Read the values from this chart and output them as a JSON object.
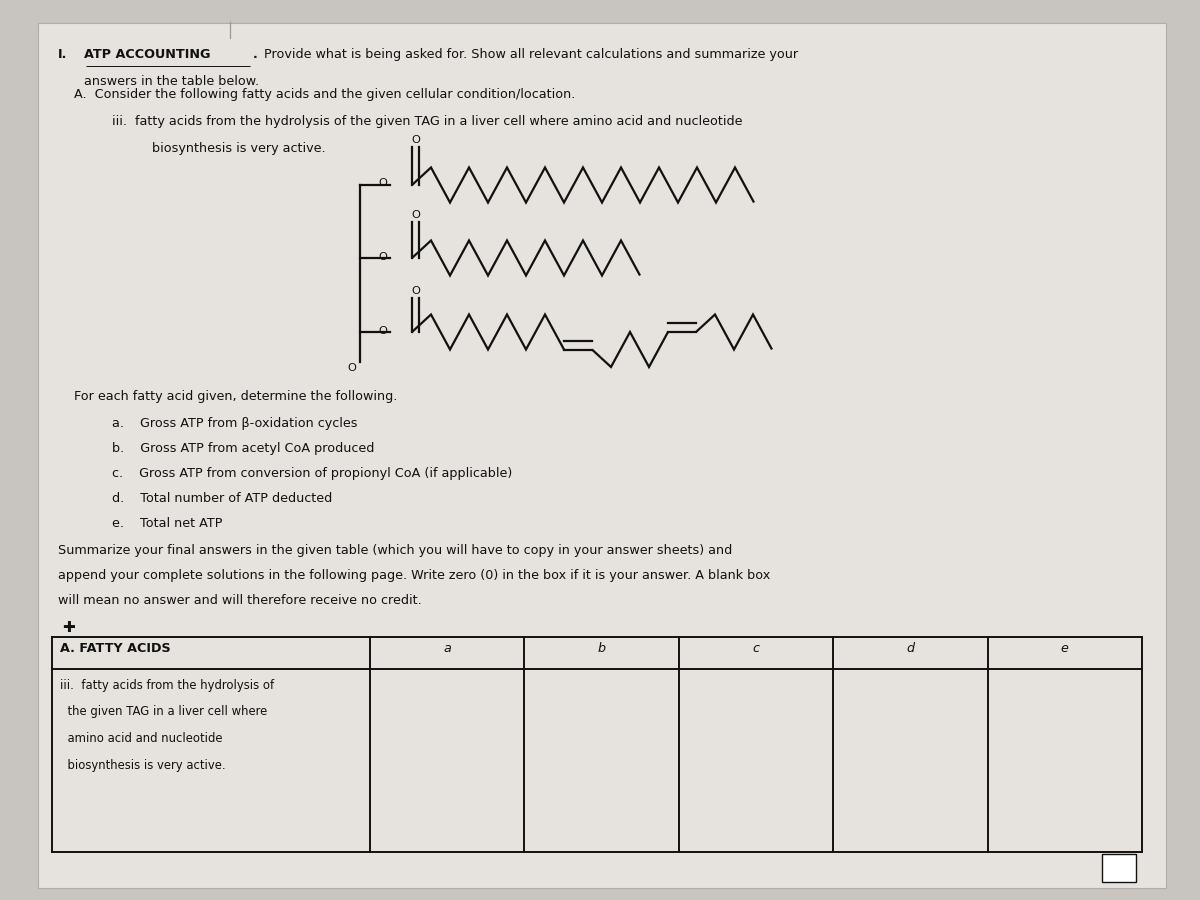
{
  "bg_color": "#c8c4c0",
  "page_bg": "#e6e2de",
  "title_num": "I.",
  "title_bold": "ATP ACCOUNTING",
  "title_dot": ".",
  "title_rest": " Provide what is being asked for. Show all relevant calculations and summarize your",
  "title_rest2": "answers in the table below.",
  "section_a": "A.  Consider the following fatty acids and the given cellular condition/location.",
  "section_iii": "iii.  fatty acids from the hydrolysis of the given TAG in a liver cell where amino acid and nucleotide",
  "section_iii2": "biosynthesis is very active.",
  "for_each": "For each fatty acid given, determine the following.",
  "item_a": "a.    Gross ATP from β-oxidation cycles",
  "item_b": "b.    Gross ATP from acetyl CoA produced",
  "item_c": "c.    Gross ATP from conversion of propionyl CoA (if applicable)",
  "item_d": "d.    Total number of ATP deducted",
  "item_e": "e.    Total net ATP",
  "summary1": "Summarize your final answers in the given table (which you will have to copy in your answer sheets) and",
  "summary2": "append your complete solutions in the following page. Write zero (0) in the box if it is your answer. A blank box",
  "summary3": "will mean no answer and will therefore receive no credit.",
  "table_header_col1": "A. FATTY ACIDS",
  "table_col_headers": [
    "a",
    "b",
    "c",
    "d",
    "e"
  ],
  "row1_line1": "iii.  fatty acids from the hydrolysis of",
  "row1_line2": "  the given TAG in a liver cell where",
  "row1_line3": "  amino acid and nucleotide",
  "row1_line4": "  biosynthesis is very active.",
  "tc": "#111111",
  "lc": "#111111",
  "page_line_color": "#999999"
}
